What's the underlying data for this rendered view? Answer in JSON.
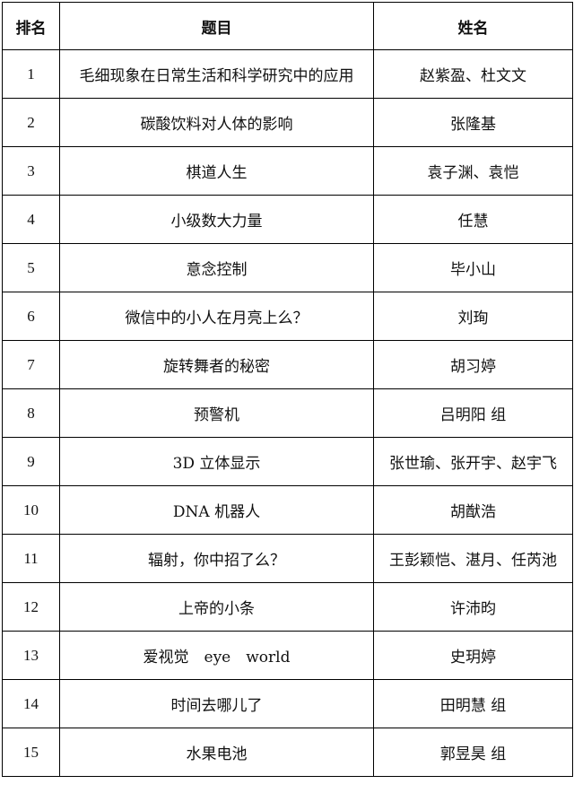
{
  "headers": [
    "排名",
    "题目",
    "姓名"
  ],
  "rows": [
    {
      "rank": "1",
      "title": "毛细现象在日常生活和科学研究中的应用",
      "name": "赵紫盈、杜文文"
    },
    {
      "rank": "2",
      "title": "碳酸饮料对人体的影响",
      "name": "张隆基"
    },
    {
      "rank": "3",
      "title": "棋道人生",
      "name": "袁子渊、袁恺"
    },
    {
      "rank": "4",
      "title": "小级数大力量",
      "name": "任慧"
    },
    {
      "rank": "5",
      "title": "意念控制",
      "name": "毕小山"
    },
    {
      "rank": "6",
      "title": "微信中的小人在月亮上么？",
      "name": "刘珣"
    },
    {
      "rank": "7",
      "title": "旋转舞者的秘密",
      "name": "胡习婷"
    },
    {
      "rank": "8",
      "title": "预警机",
      "name": "吕明阳 组"
    },
    {
      "rank": "9",
      "title": "3D 立体显示",
      "name": "张世瑜、张开宇、赵宇飞"
    },
    {
      "rank": "10",
      "title": "DNA 机器人",
      "name": "胡猷浩"
    },
    {
      "rank": "11",
      "title": "辐射，你中招了么？",
      "name": "王彭颖恺、湛月、任芮池"
    },
    {
      "rank": "12",
      "title": "上帝的小条",
      "name": "许沛昀"
    },
    {
      "rank": "13",
      "title": "爱视觉　eye　world",
      "name": "史玥婷"
    },
    {
      "rank": "14",
      "title": "时间去哪儿了",
      "name": "田明慧 组"
    },
    {
      "rank": "15",
      "title": "水果电池",
      "name": "郭昱昊 组"
    }
  ]
}
